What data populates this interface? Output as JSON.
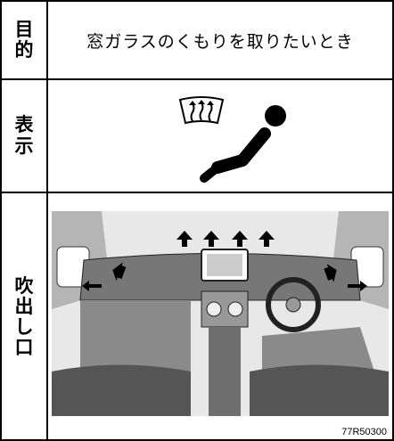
{
  "table": {
    "rows": [
      {
        "header": "目的",
        "content": "窓ガラスのくもりを取りたいとき"
      },
      {
        "header": "表示"
      },
      {
        "header": "吹出し口",
        "caption": "77R50300"
      }
    ]
  }
}
